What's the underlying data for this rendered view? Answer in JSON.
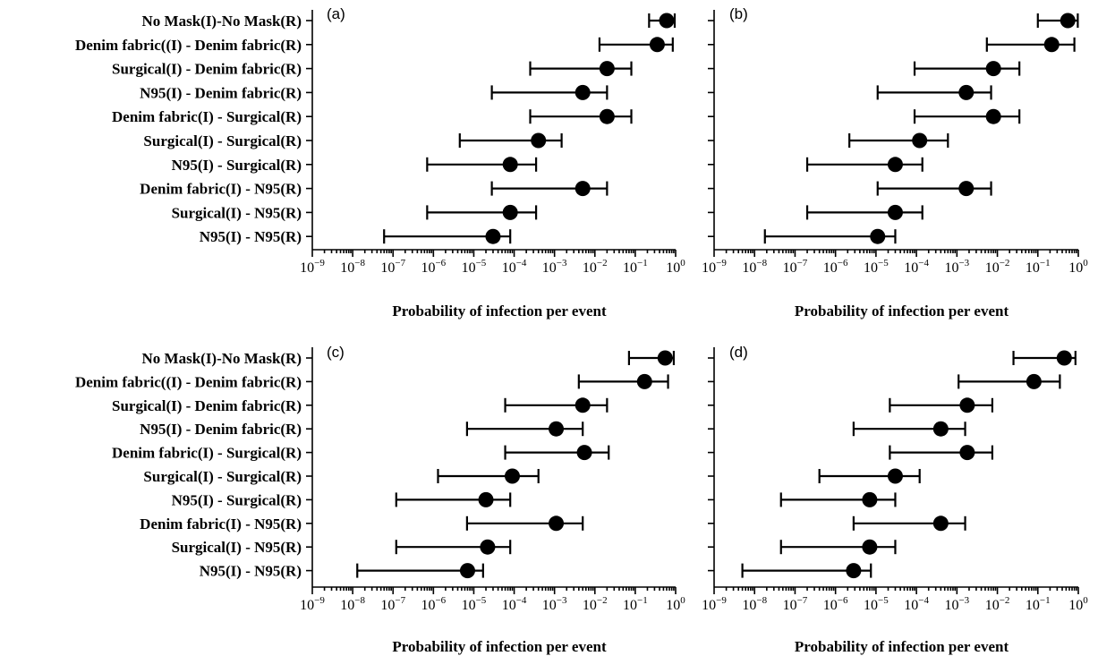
{
  "chart_data": [
    {
      "type": "scatter",
      "panel": "(a)",
      "xlabel": "Probability of infection per event",
      "x_scale": "log",
      "xlim": [
        1e-09,
        1
      ],
      "xticks": [
        1e-09,
        1e-08,
        1e-07,
        1e-06,
        1e-05,
        0.0001,
        0.001,
        0.01,
        0.1,
        1
      ],
      "categories": [
        "No Mask(I)-No Mask(R)",
        "Denim fabric((I) - Denim fabric(R)",
        "Surgical(I) - Denim fabric(R)",
        "N95(I) - Denim fabric(R)",
        "Denim fabric(I) - Surgical(R)",
        "Surgical(I) - Surgical(R)",
        "N95(I) - Surgical(R)",
        "Denim fabric(I) - N95(R)",
        "Surgical(I) - N95(R)",
        "N95(I) - N95(R)"
      ],
      "values": [
        0.6,
        0.35,
        0.02,
        0.005,
        0.02,
        0.0004,
        8e-05,
        0.005,
        8e-05,
        3e-05
      ],
      "lower": [
        0.22,
        0.013,
        0.00025,
        2.8e-05,
        0.00025,
        4.5e-06,
        7e-07,
        2.8e-05,
        7e-07,
        6e-08
      ],
      "upper": [
        0.95,
        0.85,
        0.08,
        0.02,
        0.08,
        0.0015,
        0.00035,
        0.02,
        0.00035,
        8e-05
      ]
    },
    {
      "type": "scatter",
      "panel": "(b)",
      "xlabel": "Probability of infection per event",
      "x_scale": "log",
      "xlim": [
        1e-09,
        1
      ],
      "xticks": [
        1e-09,
        1e-08,
        1e-07,
        1e-06,
        1e-05,
        0.0001,
        0.001,
        0.01,
        0.1,
        1
      ],
      "categories": [
        "No Mask(I)-No Mask(R)",
        "Denim fabric((I) - Denim fabric(R)",
        "Surgical(I) - Denim fabric(R)",
        "N95(I) - Denim fabric(R)",
        "Denim fabric(I) - Surgical(R)",
        "Surgical(I) - Surgical(R)",
        "N95(I) - Surgical(R)",
        "Denim fabric(I) - N95(R)",
        "Surgical(I) - N95(R)",
        "N95(I) - N95(R)"
      ],
      "values": [
        0.55,
        0.22,
        0.008,
        0.0017,
        0.008,
        0.00012,
        3e-05,
        0.0017,
        3e-05,
        1.1e-05
      ],
      "lower": [
        0.1,
        0.0055,
        9e-05,
        1.1e-05,
        9e-05,
        2.2e-06,
        2e-07,
        1.1e-05,
        2e-07,
        1.8e-08
      ],
      "upper": [
        0.97,
        0.8,
        0.035,
        0.007,
        0.035,
        0.0006,
        0.00014,
        0.007,
        0.00014,
        3e-05
      ]
    },
    {
      "type": "scatter",
      "panel": "(c)",
      "xlabel": "Probability of infection per event",
      "x_scale": "log",
      "xlim": [
        1e-09,
        1
      ],
      "xticks": [
        1e-09,
        1e-08,
        1e-07,
        1e-06,
        1e-05,
        0.0001,
        0.001,
        0.01,
        0.1,
        1
      ],
      "categories": [
        "No Mask(I)-No Mask(R)",
        "Denim fabric((I) - Denim fabric(R)",
        "Surgical(I) - Denim fabric(R)",
        "N95(I) - Denim fabric(R)",
        "Denim fabric(I) - Surgical(R)",
        "Surgical(I) - Surgical(R)",
        "N95(I) - Surgical(R)",
        "Denim fabric(I) - N95(R)",
        "Surgical(I) - N95(R)",
        "N95(I) - N95(R)"
      ],
      "values": [
        0.55,
        0.17,
        0.005,
        0.0011,
        0.0055,
        9e-05,
        2e-05,
        0.0011,
        2.2e-05,
        7e-06
      ],
      "lower": [
        0.07,
        0.004,
        6e-05,
        6.8e-06,
        6e-05,
        1.3e-06,
        1.2e-07,
        6.8e-06,
        1.2e-07,
        1.3e-08
      ],
      "upper": [
        0.9,
        0.65,
        0.02,
        0.005,
        0.022,
        0.0004,
        8e-05,
        0.005,
        8e-05,
        1.7e-05
      ]
    },
    {
      "type": "scatter",
      "panel": "(d)",
      "xlabel": "Probability of infection per event",
      "x_scale": "log",
      "xlim": [
        1e-09,
        1
      ],
      "xticks": [
        1e-09,
        1e-08,
        1e-07,
        1e-06,
        1e-05,
        0.0001,
        0.001,
        0.01,
        0.1,
        1
      ],
      "categories": [
        "No Mask(I)-No Mask(R)",
        "Denim fabric((I) - Denim fabric(R)",
        "Surgical(I) - Denim fabric(R)",
        "N95(I) - Denim fabric(R)",
        "Denim fabric(I) - Surgical(R)",
        "Surgical(I) - Surgical(R)",
        "N95(I) - Surgical(R)",
        "Denim fabric(I) - N95(R)",
        "Surgical(I) - N95(R)",
        "N95(I) - N95(R)"
      ],
      "values": [
        0.45,
        0.08,
        0.0018,
        0.0004,
        0.0018,
        3e-05,
        7e-06,
        0.0004,
        7e-06,
        2.8e-06
      ],
      "lower": [
        0.025,
        0.0011,
        2.2e-05,
        2.8e-06,
        2.2e-05,
        4e-07,
        4.5e-08,
        2.8e-06,
        4.5e-08,
        5e-09
      ],
      "upper": [
        0.85,
        0.35,
        0.0075,
        0.0016,
        0.0075,
        0.00012,
        3e-05,
        0.0016,
        3e-05,
        7.5e-06
      ]
    }
  ]
}
